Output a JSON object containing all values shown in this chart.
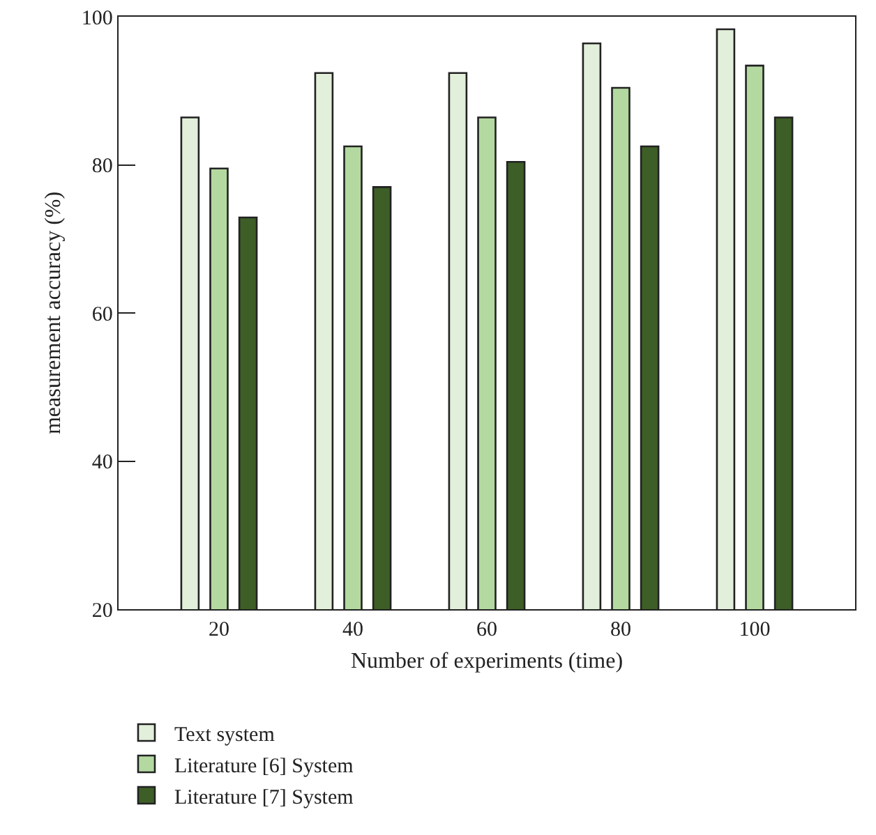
{
  "chart_data": {
    "type": "bar",
    "xlabel": "Number of experiments (time)",
    "ylabel": "measurement accuracy (%)",
    "categories": [
      "20",
      "40",
      "60",
      "80",
      "100"
    ],
    "series": [
      {
        "name": "Text system",
        "color": "#e2efda",
        "values": [
          86.4,
          92.4,
          92.4,
          96.4,
          98.3
        ]
      },
      {
        "name": "Literature [6] System",
        "color": "#b3d9a0",
        "values": [
          79.5,
          82.5,
          86.4,
          90.4,
          93.4
        ]
      },
      {
        "name": "Literature [7] System",
        "color": "#3d5e27",
        "values": [
          72.9,
          77.0,
          80.4,
          82.5,
          86.4
        ]
      }
    ],
    "ylim": [
      20,
      100
    ],
    "yticks": [
      20,
      40,
      60,
      80,
      100
    ],
    "grid": false,
    "legend": "bottom left"
  }
}
